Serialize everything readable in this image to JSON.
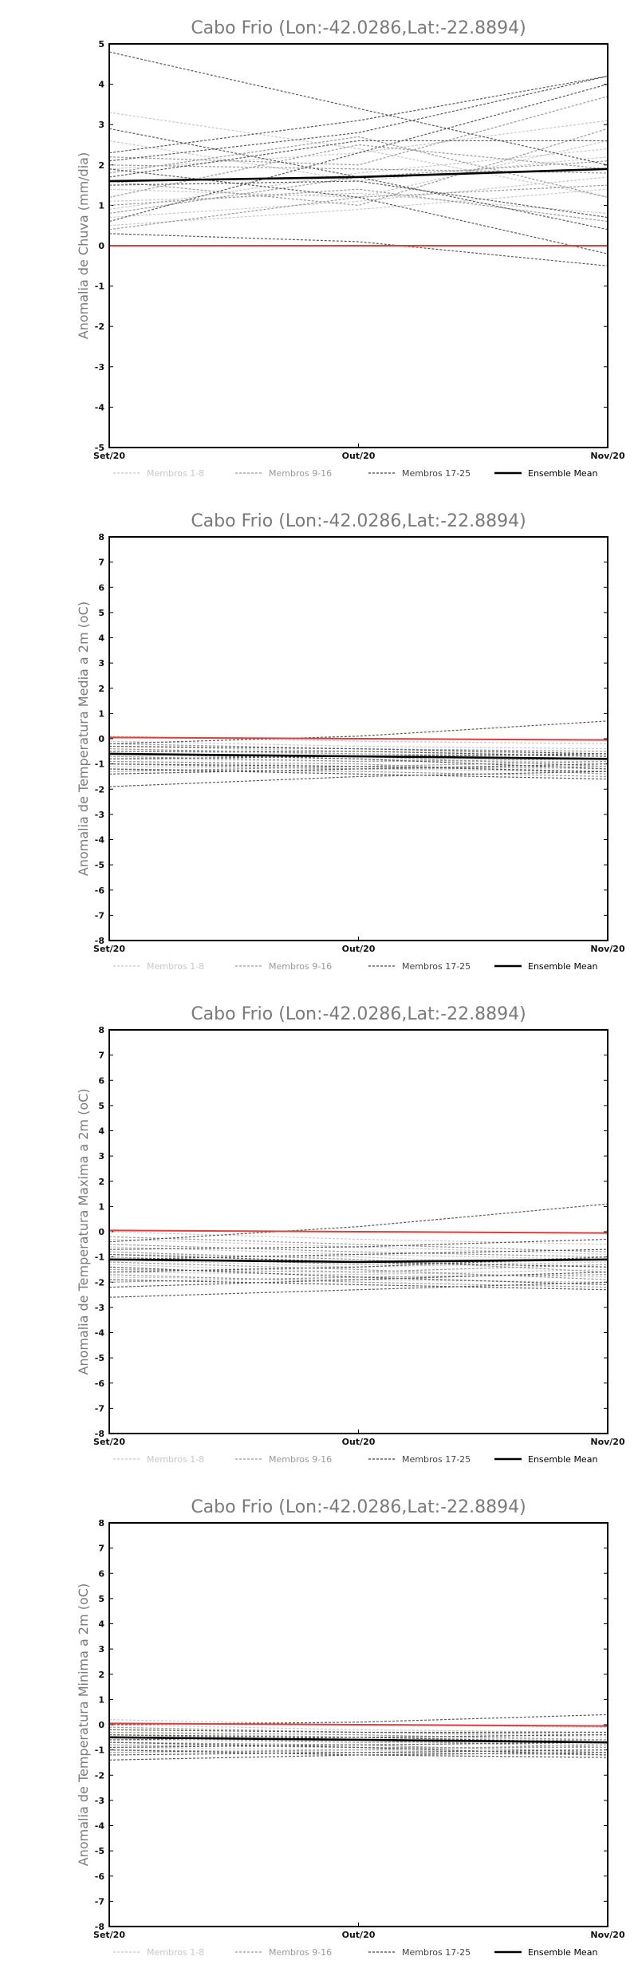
{
  "chart_data": [
    {
      "type": "line",
      "title": "Cabo Frio (Lon:-42.0286,Lat:-22.8894)",
      "ylabel": "Anomalia de Chuva (mm/dia)",
      "x": [
        "Set/20",
        "Out/20",
        "Nov/20"
      ],
      "ylim": [
        -5,
        5
      ],
      "yticks": [
        -5,
        -4,
        -3,
        -2,
        -1,
        0,
        1,
        2,
        3,
        4,
        5
      ],
      "legend": [
        "Membros 1-8",
        "Membros 9-16",
        "Membros 17-25",
        "Ensemble Mean"
      ],
      "members": [
        [
          3.3,
          2.4,
          1.2
        ],
        [
          2.6,
          1.6,
          2.2
        ],
        [
          1.9,
          2.3,
          3.1
        ],
        [
          1.4,
          1.2,
          2.6
        ],
        [
          1.1,
          1.3,
          0.8
        ],
        [
          0.9,
          1.8,
          2.4
        ],
        [
          0.7,
          1.1,
          1.7
        ],
        [
          0.5,
          0.9,
          1.4
        ],
        [
          2.2,
          2.0,
          3.7
        ],
        [
          1.8,
          2.7,
          1.2
        ],
        [
          1.6,
          1.0,
          2.9
        ],
        [
          1.2,
          2.5,
          1.9
        ],
        [
          1.0,
          1.4,
          0.6
        ],
        [
          0.8,
          1.7,
          2.1
        ],
        [
          0.4,
          1.2,
          1.5
        ],
        [
          2.0,
          1.9,
          1.8
        ],
        [
          4.8,
          3.4,
          2.0
        ],
        [
          2.9,
          1.7,
          0.4
        ],
        [
          2.3,
          3.1,
          4.2
        ],
        [
          2.1,
          2.8,
          4.2
        ],
        [
          1.9,
          1.2,
          -0.2
        ],
        [
          1.7,
          2.6,
          2.6
        ],
        [
          1.5,
          1.6,
          0.7
        ],
        [
          0.6,
          2.3,
          4.0
        ],
        [
          0.3,
          0.1,
          -0.5
        ]
      ],
      "ensemble_mean": [
        1.6,
        1.7,
        1.9
      ],
      "reference": [
        0.0,
        0.0,
        0.0
      ]
    },
    {
      "type": "line",
      "title": "Cabo Frio (Lon:-42.0286,Lat:-22.8894)",
      "ylabel": "Anomalia de Temperatura Media a 2m (oC)",
      "x": [
        "Set/20",
        "Out/20",
        "Nov/20"
      ],
      "ylim": [
        -8,
        8
      ],
      "yticks": [
        -8,
        -7,
        -6,
        -5,
        -4,
        -3,
        -2,
        -1,
        0,
        1,
        2,
        3,
        4,
        5,
        6,
        7,
        8
      ],
      "legend": [
        "Membros 1-8",
        "Membros 9-16",
        "Membros 17-25",
        "Ensemble Mean"
      ],
      "members": [
        [
          0.1,
          -0.1,
          -0.2
        ],
        [
          -0.1,
          -0.3,
          -0.4
        ],
        [
          -0.3,
          -0.5,
          -0.6
        ],
        [
          -0.5,
          -0.6,
          -0.8
        ],
        [
          -0.6,
          -0.8,
          -1.0
        ],
        [
          -0.8,
          -0.9,
          -0.9
        ],
        [
          -0.9,
          -1.1,
          -1.2
        ],
        [
          -1.1,
          -1.2,
          -1.3
        ],
        [
          -0.2,
          -0.4,
          -0.5
        ],
        [
          -0.4,
          -0.6,
          -0.7
        ],
        [
          -0.6,
          -0.7,
          -1.1
        ],
        [
          -0.7,
          -0.9,
          -0.8
        ],
        [
          -0.9,
          -1.0,
          -1.4
        ],
        [
          -1.0,
          -1.2,
          -1.1
        ],
        [
          -1.2,
          -1.3,
          -1.5
        ],
        [
          -1.3,
          -1.1,
          -0.9
        ],
        [
          -0.2,
          0.1,
          0.7
        ],
        [
          -0.3,
          -0.4,
          -0.6
        ],
        [
          -0.5,
          -0.5,
          -0.7
        ],
        [
          -0.6,
          -0.8,
          -1.2
        ],
        [
          -0.8,
          -0.7,
          -0.6
        ],
        [
          -1.0,
          -1.1,
          -1.3
        ],
        [
          -1.2,
          -1.4,
          -1.6
        ],
        [
          -1.4,
          -1.2,
          -1.0
        ],
        [
          -1.9,
          -1.5,
          -1.3
        ]
      ],
      "ensemble_mean": [
        -0.6,
        -0.7,
        -0.8
      ],
      "reference": [
        0.05,
        0.0,
        -0.05
      ]
    },
    {
      "type": "line",
      "title": "Cabo Frio (Lon:-42.0286,Lat:-22.8894)",
      "ylabel": "Anomalia de Temperatura Maxima a 2m (oC)",
      "x": [
        "Set/20",
        "Out/20",
        "Nov/20"
      ],
      "ylim": [
        -8,
        8
      ],
      "yticks": [
        -8,
        -7,
        -6,
        -5,
        -4,
        -3,
        -2,
        -1,
        0,
        1,
        2,
        3,
        4,
        5,
        6,
        7,
        8
      ],
      "legend": [
        "Membros 1-8",
        "Membros 9-16",
        "Membros 17-25",
        "Ensemble Mean"
      ],
      "members": [
        [
          0.0,
          -0.3,
          -0.5
        ],
        [
          -0.3,
          -0.6,
          -0.9
        ],
        [
          -0.6,
          -0.9,
          -1.1
        ],
        [
          -0.9,
          -1.0,
          -1.4
        ],
        [
          -1.1,
          -1.4,
          -1.2
        ],
        [
          -1.3,
          -1.6,
          -1.8
        ],
        [
          -1.6,
          -1.7,
          -1.5
        ],
        [
          -1.8,
          -1.9,
          -2.0
        ],
        [
          -0.2,
          -0.5,
          -0.8
        ],
        [
          -0.5,
          -0.8,
          -1.0
        ],
        [
          -0.8,
          -1.1,
          -1.6
        ],
        [
          -1.0,
          -1.3,
          -1.1
        ],
        [
          -1.2,
          -1.5,
          -1.9
        ],
        [
          -1.5,
          -1.6,
          -1.3
        ],
        [
          -1.7,
          -2.0,
          -2.2
        ],
        [
          -2.0,
          -1.8,
          -1.7
        ],
        [
          -0.4,
          0.2,
          1.1
        ],
        [
          -0.7,
          -0.6,
          -0.3
        ],
        [
          -0.9,
          -1.2,
          -1.4
        ],
        [
          -1.1,
          -0.9,
          -0.7
        ],
        [
          -1.4,
          -1.8,
          -2.1
        ],
        [
          -1.6,
          -1.4,
          -1.0
        ],
        [
          -1.9,
          -2.1,
          -2.3
        ],
        [
          -2.2,
          -1.9,
          -1.6
        ],
        [
          -2.6,
          -2.3,
          -2.0
        ]
      ],
      "ensemble_mean": [
        -1.1,
        -1.2,
        -1.1
      ],
      "reference": [
        0.05,
        0.0,
        -0.05
      ]
    },
    {
      "type": "line",
      "title": "Cabo Frio (Lon:-42.0286,Lat:-22.8894)",
      "ylabel": "Anomalia de Temperatura Minima a 2m (oC)",
      "x": [
        "Set/20",
        "Out/20",
        "Nov/20"
      ],
      "ylim": [
        -8,
        8
      ],
      "yticks": [
        -8,
        -7,
        -6,
        -5,
        -4,
        -3,
        -2,
        -1,
        0,
        1,
        2,
        3,
        4,
        5,
        6,
        7,
        8
      ],
      "legend": [
        "Membros 1-8",
        "Membros 9-16",
        "Membros 17-25",
        "Ensemble Mean"
      ],
      "members": [
        [
          0.2,
          0.0,
          -0.1
        ],
        [
          0.0,
          -0.2,
          -0.3
        ],
        [
          -0.2,
          -0.3,
          -0.5
        ],
        [
          -0.3,
          -0.5,
          -0.6
        ],
        [
          -0.5,
          -0.6,
          -0.8
        ],
        [
          -0.6,
          -0.7,
          -0.7
        ],
        [
          -0.8,
          -0.9,
          -1.0
        ],
        [
          -0.9,
          -1.0,
          -1.1
        ],
        [
          -0.1,
          -0.3,
          -0.4
        ],
        [
          -0.3,
          -0.4,
          -0.6
        ],
        [
          -0.4,
          -0.6,
          -0.9
        ],
        [
          -0.5,
          -0.7,
          -0.6
        ],
        [
          -0.7,
          -0.8,
          -1.1
        ],
        [
          -0.8,
          -0.9,
          -0.9
        ],
        [
          -1.0,
          -1.1,
          -1.2
        ],
        [
          -1.1,
          -1.0,
          -0.8
        ],
        [
          0.0,
          0.1,
          0.4
        ],
        [
          -0.2,
          -0.3,
          -0.3
        ],
        [
          -0.4,
          -0.5,
          -0.7
        ],
        [
          -0.6,
          -0.5,
          -0.4
        ],
        [
          -0.7,
          -0.9,
          -1.2
        ],
        [
          -0.9,
          -0.8,
          -0.7
        ],
        [
          -1.0,
          -1.2,
          -1.3
        ],
        [
          -1.2,
          -1.1,
          -1.0
        ],
        [
          -1.4,
          -1.2,
          -1.1
        ]
      ],
      "ensemble_mean": [
        -0.5,
        -0.6,
        -0.7
      ],
      "reference": [
        0.05,
        0.0,
        -0.05
      ]
    }
  ]
}
